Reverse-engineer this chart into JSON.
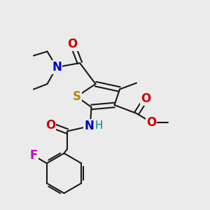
{
  "background_color": "#ebebeb",
  "bond_color": "#1a1a1a",
  "bond_width": 1.5,
  "atom_colors": {
    "S": "#b8860b",
    "N": "#0000cc",
    "O": "#cc0000",
    "F": "#cc00cc",
    "H": "#008b8b",
    "C": "#1a1a1a"
  },
  "font_size_atom": 12,
  "font_size_h": 11
}
